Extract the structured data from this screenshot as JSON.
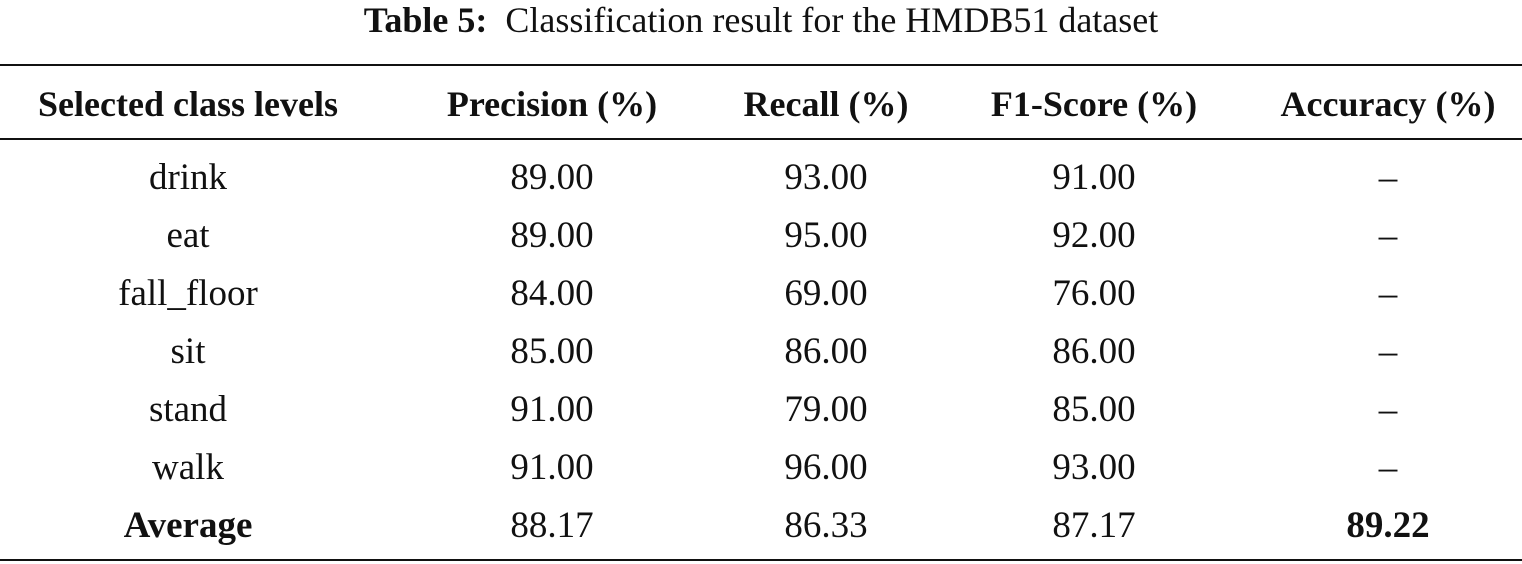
{
  "caption": {
    "label": "Table 5:",
    "text": "Classification result for the HMDB51 dataset"
  },
  "table": {
    "header": [
      "Selected class levels",
      "Precision (%)",
      "Recall (%)",
      "F1-Score (%)",
      "Accuracy (%)"
    ],
    "rows": [
      [
        "drink",
        "89.00",
        "93.00",
        "91.00",
        "–"
      ],
      [
        "eat",
        "89.00",
        "95.00",
        "92.00",
        "–"
      ],
      [
        "fall_floor",
        "84.00",
        "69.00",
        "76.00",
        "–"
      ],
      [
        "sit",
        "85.00",
        "86.00",
        "86.00",
        "–"
      ],
      [
        "stand",
        "91.00",
        "79.00",
        "85.00",
        "–"
      ],
      [
        "walk",
        "91.00",
        "96.00",
        "93.00",
        "–"
      ],
      [
        "Average",
        "88.17",
        "86.33",
        "87.17",
        "89.22"
      ]
    ]
  }
}
